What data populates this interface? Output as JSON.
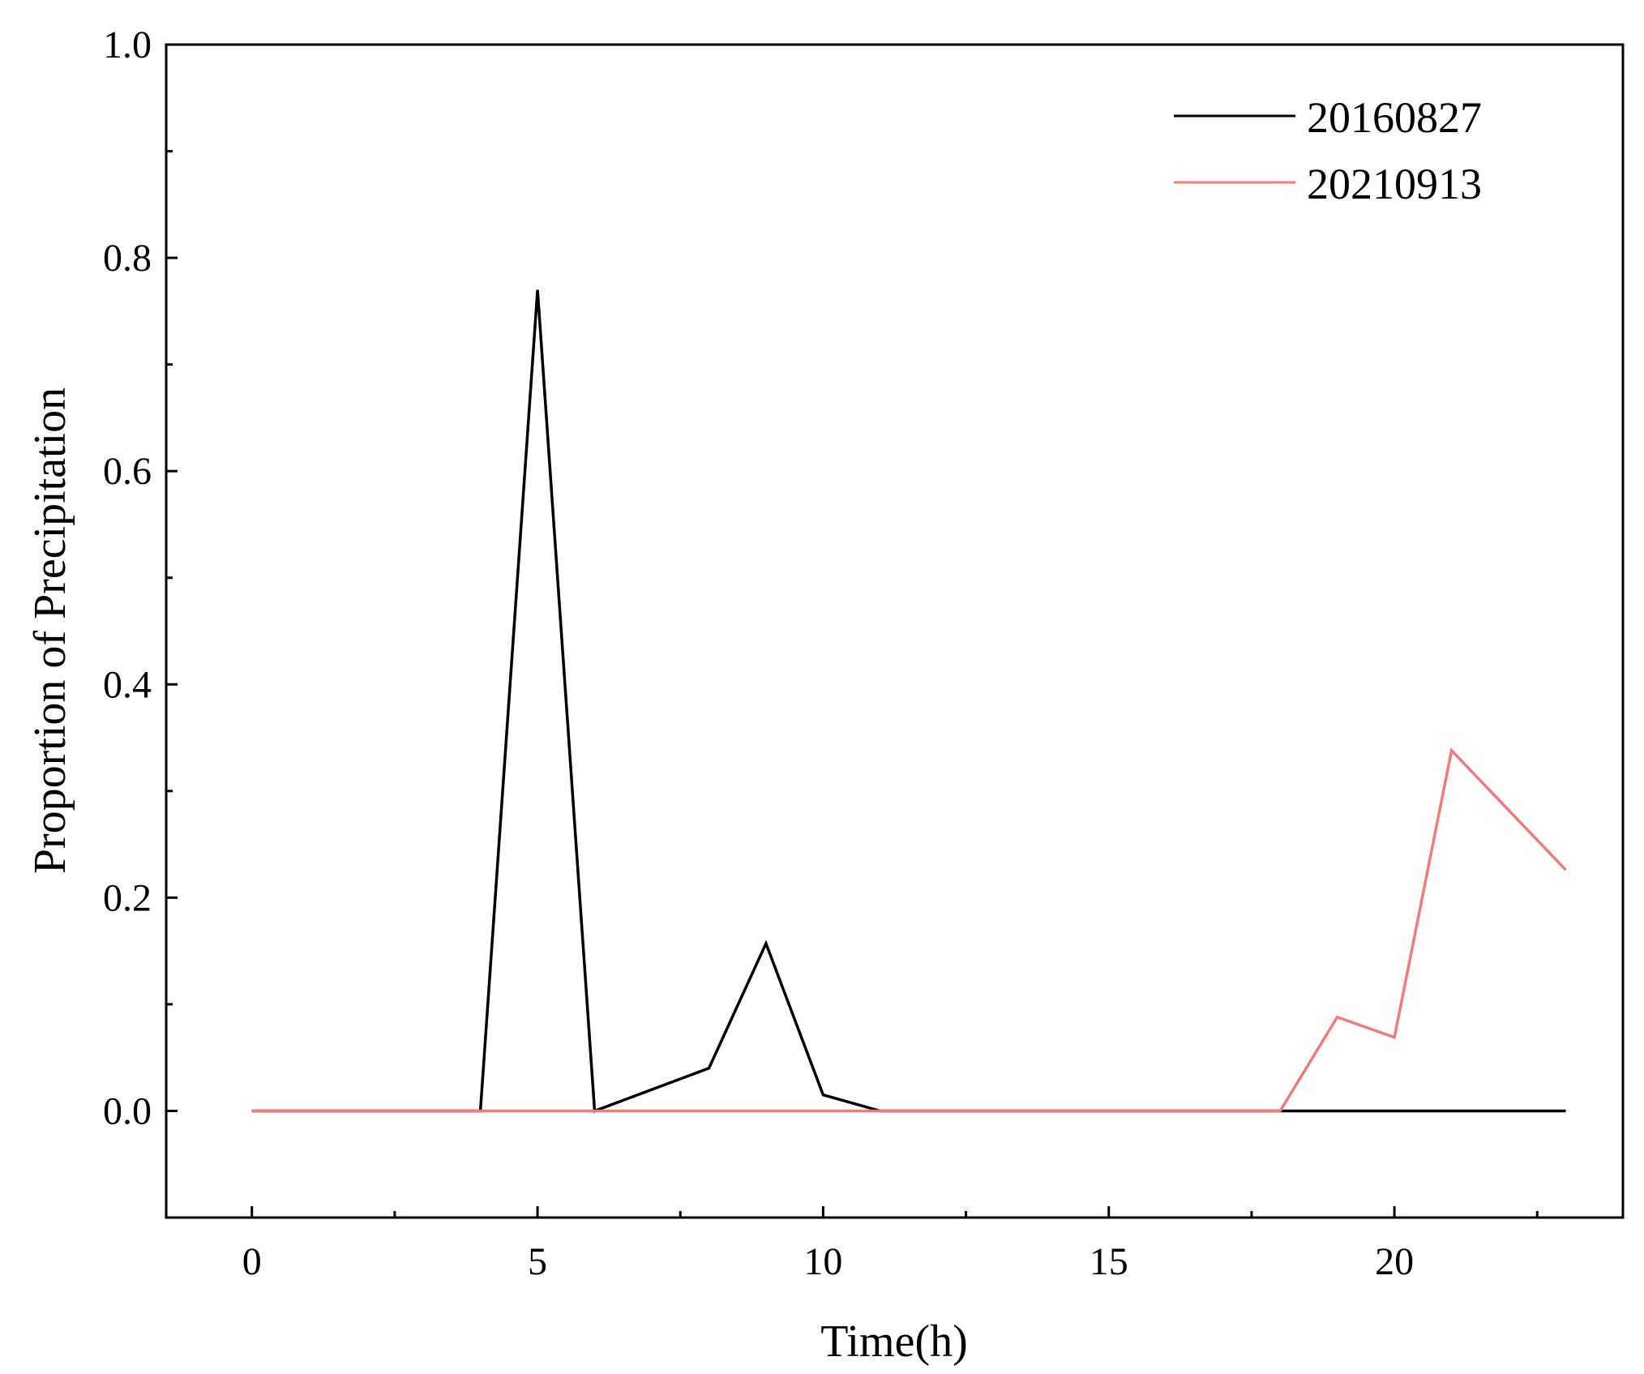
{
  "chart_data": {
    "type": "line",
    "title": "",
    "xlabel": "Time(h)",
    "ylabel": "Proportion of Precipitation",
    "xlim": [
      -1.5,
      24.0
    ],
    "ylim": [
      -0.1,
      1.0
    ],
    "x_ticks": [
      0,
      5,
      10,
      15,
      20
    ],
    "x_tick_labels": [
      "0",
      "5",
      "10",
      "15",
      "20"
    ],
    "x_minor_ticks": [
      2.5,
      7.5,
      12.5,
      17.5,
      22.5
    ],
    "y_ticks": [
      0.0,
      0.2,
      0.4,
      0.6,
      0.8,
      1.0
    ],
    "y_tick_labels": [
      "0.0",
      "0.2",
      "0.4",
      "0.6",
      "0.8",
      "1.0"
    ],
    "y_minor_ticks": [
      0.1,
      0.3,
      0.5,
      0.7,
      0.9
    ],
    "grid": false,
    "legend_position": "top-right",
    "x": [
      0,
      1,
      2,
      3,
      4,
      5,
      6,
      7,
      8,
      9,
      10,
      11,
      12,
      13,
      14,
      15,
      16,
      17,
      18,
      19,
      20,
      21,
      22,
      23
    ],
    "series": [
      {
        "name": "20160827",
        "color": "#000000",
        "values": [
          0,
          0,
          0,
          0,
          0,
          0.77,
          0,
          0.02,
          0.04,
          0.157,
          0.015,
          0,
          0,
          0,
          0,
          0,
          0,
          0,
          0,
          0,
          0,
          0,
          0,
          0
        ]
      },
      {
        "name": "20210913",
        "color": "#f07b7b",
        "values": [
          0,
          0,
          0,
          0,
          0,
          0,
          0,
          0,
          0,
          0,
          0,
          0,
          0,
          0,
          0,
          0,
          0,
          0,
          0,
          0.088,
          0.069,
          0.338,
          0.282,
          0.226
        ]
      }
    ]
  }
}
